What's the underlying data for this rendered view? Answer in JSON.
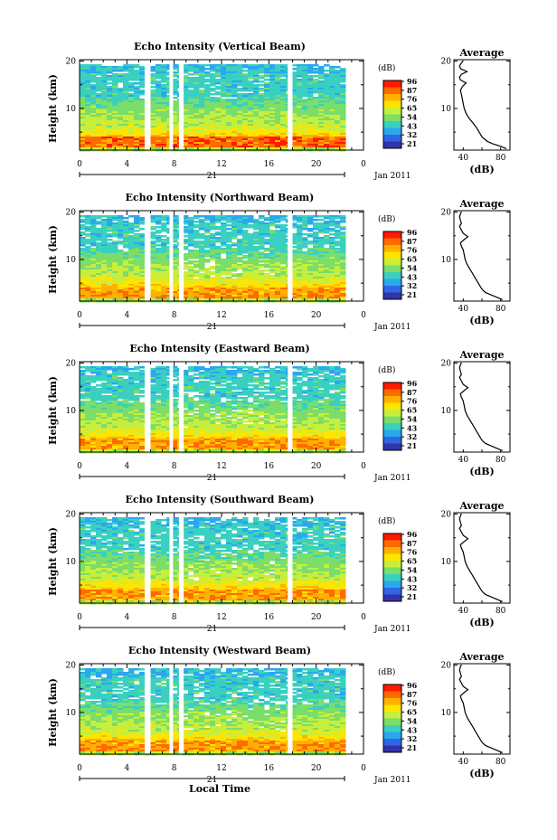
{
  "chart_data": {
    "type": "heatmap",
    "xlabel": "Local Time",
    "date_label": "Jan 2011",
    "day_label": "21",
    "x_ticks": [
      "0",
      "4",
      "8",
      "12",
      "16",
      "20",
      "0"
    ],
    "xlim": [
      0,
      24
    ],
    "data_end_hour": 22.4,
    "gap_hours": [
      [
        5.5,
        6.0
      ],
      [
        7.6,
        7.9
      ],
      [
        8.4,
        8.8
      ],
      [
        17.6,
        18.0
      ]
    ],
    "ylabel": "Height (km)",
    "y_ticks": [
      "10",
      "20"
    ],
    "ylim": [
      1.2,
      20.3
    ],
    "colorbar": {
      "unit": "(dB)",
      "labels": [
        "96",
        "87",
        "76",
        "65",
        "54",
        "43",
        "32",
        "21"
      ],
      "colors": [
        "#ff1a00",
        "#ff6a00",
        "#ffb000",
        "#ffe400",
        "#c8ee3c",
        "#7bdd6a",
        "#3ad0c0",
        "#2aa8ee",
        "#2f66e6",
        "#3333aa"
      ]
    },
    "average_profile": {
      "title": "Average",
      "xlabel": "(dB)",
      "x_ticks": [
        "40",
        "80"
      ],
      "xlim": [
        30,
        90
      ],
      "y_ticks": [
        "10",
        "20"
      ],
      "ylim": [
        1.2,
        20.3
      ]
    },
    "panels": [
      {
        "title": "Echo Intensity (Vertical Beam)",
        "profile": [
          [
            86,
            1.5
          ],
          [
            80,
            2
          ],
          [
            72,
            2.5
          ],
          [
            66,
            3
          ],
          [
            63,
            3.5
          ],
          [
            60,
            4
          ],
          [
            57,
            5
          ],
          [
            54,
            6
          ],
          [
            50,
            7
          ],
          [
            46,
            8
          ],
          [
            43,
            9
          ],
          [
            41,
            10
          ],
          [
            40,
            11
          ],
          [
            39,
            12
          ],
          [
            38,
            13
          ],
          [
            37,
            13.8
          ],
          [
            39,
            14.6
          ],
          [
            43,
            15.4
          ],
          [
            37,
            16
          ],
          [
            36,
            16.6
          ],
          [
            38,
            17.2
          ],
          [
            44,
            17.8
          ],
          [
            37,
            18.4
          ],
          [
            36,
            19
          ],
          [
            38,
            19.6
          ],
          [
            40,
            20.1
          ]
        ]
      },
      {
        "title": "Echo Intensity (Northward Beam)",
        "profile": [
          [
            82,
            1.5
          ],
          [
            76,
            2
          ],
          [
            70,
            2.5
          ],
          [
            64,
            3
          ],
          [
            61,
            3.5
          ],
          [
            59,
            4
          ],
          [
            56,
            5
          ],
          [
            53,
            6
          ],
          [
            50,
            7
          ],
          [
            47,
            8
          ],
          [
            44,
            9
          ],
          [
            42,
            10
          ],
          [
            41,
            11
          ],
          [
            40,
            12
          ],
          [
            38,
            12.8
          ],
          [
            37,
            13.5
          ],
          [
            41,
            14.2
          ],
          [
            45,
            14.8
          ],
          [
            40,
            15.5
          ],
          [
            38,
            16.2
          ],
          [
            36,
            17
          ],
          [
            38,
            17.6
          ],
          [
            37,
            18.3
          ],
          [
            36,
            19
          ],
          [
            37,
            19.6
          ],
          [
            38,
            20.1
          ]
        ]
      },
      {
        "title": "Echo Intensity (Eastward Beam)",
        "profile": [
          [
            82,
            1.5
          ],
          [
            76,
            2
          ],
          [
            70,
            2.5
          ],
          [
            64,
            3
          ],
          [
            61,
            3.5
          ],
          [
            59,
            4
          ],
          [
            56,
            5
          ],
          [
            53,
            6
          ],
          [
            50,
            7
          ],
          [
            47,
            8
          ],
          [
            44,
            9
          ],
          [
            42,
            10
          ],
          [
            41,
            11
          ],
          [
            40,
            12
          ],
          [
            38,
            12.8
          ],
          [
            37,
            13.5
          ],
          [
            41,
            14.2
          ],
          [
            45,
            14.8
          ],
          [
            40,
            15.5
          ],
          [
            38,
            16.2
          ],
          [
            36,
            17
          ],
          [
            38,
            17.6
          ],
          [
            37,
            18.3
          ],
          [
            36,
            19
          ],
          [
            37,
            19.6
          ],
          [
            38,
            20.1
          ]
        ]
      },
      {
        "title": "Echo Intensity (Southward Beam)",
        "profile": [
          [
            82,
            1.5
          ],
          [
            76,
            2
          ],
          [
            70,
            2.5
          ],
          [
            64,
            3
          ],
          [
            61,
            3.5
          ],
          [
            59,
            4
          ],
          [
            56,
            5
          ],
          [
            53,
            6
          ],
          [
            50,
            7
          ],
          [
            47,
            8
          ],
          [
            44,
            9
          ],
          [
            42,
            10
          ],
          [
            41,
            11
          ],
          [
            40,
            12
          ],
          [
            38,
            12.8
          ],
          [
            37,
            13.5
          ],
          [
            41,
            14.2
          ],
          [
            45,
            14.8
          ],
          [
            40,
            15.5
          ],
          [
            38,
            16.2
          ],
          [
            36,
            17
          ],
          [
            38,
            17.6
          ],
          [
            37,
            18.3
          ],
          [
            36,
            19
          ],
          [
            37,
            19.6
          ],
          [
            38,
            20.1
          ]
        ]
      },
      {
        "title": "Echo Intensity (Westward Beam)",
        "profile": [
          [
            82,
            1.5
          ],
          [
            76,
            2
          ],
          [
            70,
            2.5
          ],
          [
            64,
            3
          ],
          [
            61,
            3.5
          ],
          [
            59,
            4
          ],
          [
            56,
            5
          ],
          [
            53,
            6
          ],
          [
            50,
            7
          ],
          [
            47,
            8
          ],
          [
            44,
            9
          ],
          [
            42,
            10
          ],
          [
            41,
            11
          ],
          [
            40,
            12
          ],
          [
            38,
            12.8
          ],
          [
            37,
            13.5
          ],
          [
            41,
            14.2
          ],
          [
            45,
            14.8
          ],
          [
            40,
            15.5
          ],
          [
            38,
            16.2
          ],
          [
            36,
            17
          ],
          [
            38,
            17.6
          ],
          [
            37,
            18.3
          ],
          [
            36,
            19
          ],
          [
            37,
            19.6
          ],
          [
            38,
            20.1
          ]
        ]
      }
    ]
  }
}
